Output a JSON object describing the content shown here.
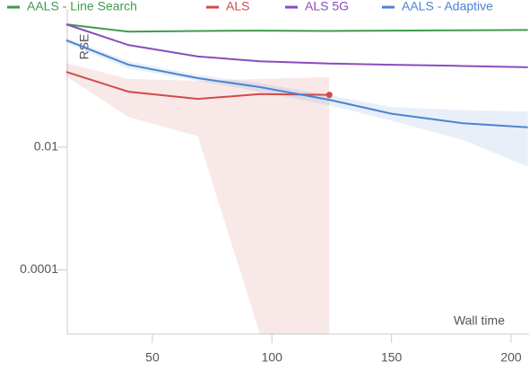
{
  "chart_data": {
    "type": "line",
    "y_label": "RSE",
    "x_label": "Wall time",
    "x": [
      14,
      40,
      69,
      95,
      124,
      150,
      180,
      207
    ],
    "xlim": [
      14.4,
      207.5
    ],
    "xticks": [
      50,
      100,
      150,
      200
    ],
    "ylim": [
      9e-06,
      1.78
    ],
    "yticks": [
      0.01,
      0.0001
    ],
    "y_scale": "log",
    "series": [
      {
        "name": "AALS - Line Search",
        "color": "#3f9b4c",
        "values": [
          1.0,
          0.76,
          0.78,
          0.79,
          0.78,
          0.79,
          0.8,
          0.81
        ]
      },
      {
        "name": "ALS",
        "color": "#d24a4a",
        "values": [
          0.168,
          0.08,
          0.061,
          0.073,
          0.071,
          null,
          null,
          null
        ],
        "upper": [
          0.235,
          0.129,
          0.12,
          0.129,
          0.138,
          null,
          null,
          null
        ],
        "lower": [
          0.142,
          0.031,
          0.015,
          9e-06,
          9e-06,
          null,
          null,
          null
        ]
      },
      {
        "name": "ALS 5G",
        "color": "#8a4dbd",
        "values": [
          1.0,
          0.46,
          0.3,
          0.25,
          0.23,
          0.22,
          0.21,
          0.2
        ]
      },
      {
        "name": "AALS - Adaptive",
        "color": "#4a84d2",
        "values": [
          0.55,
          0.22,
          0.133,
          0.095,
          0.059,
          0.035,
          0.0245,
          0.021
        ],
        "upper": [
          0.6,
          0.25,
          0.15,
          0.11,
          0.07,
          0.045,
          0.04,
          0.038
        ],
        "lower": [
          0.5,
          0.19,
          0.12,
          0.08,
          0.048,
          0.027,
          0.013,
          0.0048
        ]
      }
    ]
  }
}
